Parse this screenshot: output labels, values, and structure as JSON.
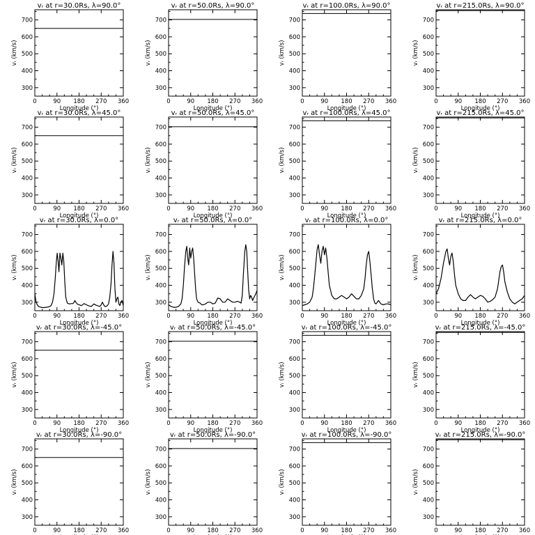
{
  "chart_data": {
    "type": "line",
    "layout": {
      "rows": 5,
      "cols": 4
    },
    "xlabel": "Longitude (°)",
    "ylabel": "vᵣ (km/s)",
    "xlim": [
      0,
      360
    ],
    "ylim": [
      250,
      760
    ],
    "xticks": [
      0,
      90,
      180,
      270,
      360
    ],
    "yticks": [
      300,
      400,
      500,
      600,
      700
    ],
    "line_color": "#000000",
    "radii": [
      "30.0",
      "50.0",
      "100.0",
      "215.0"
    ],
    "latitudes": [
      "90.0",
      "45.0",
      "0.0",
      "-45.0",
      "-90.0"
    ],
    "panels": [
      {
        "title": "vᵣ at r=30.0Rs, λ=90.0°",
        "type": "constant",
        "value": 650
      },
      {
        "title": "vᵣ at r=50.0Rs, λ=90.0°",
        "type": "constant",
        "value": 703
      },
      {
        "title": "vᵣ at r=100.0Rs, λ=90.0°",
        "type": "constant",
        "value": 738
      },
      {
        "title": "vᵣ at r=215.0Rs, λ=90.0°",
        "type": "constant",
        "value": 755
      },
      {
        "title": "vᵣ at r=30.0Rs, λ=45.0°",
        "type": "constant",
        "value": 650
      },
      {
        "title": "vᵣ at r=50.0Rs, λ=45.0°",
        "type": "constant",
        "value": 703
      },
      {
        "title": "vᵣ at r=100.0Rs, λ=45.0°",
        "type": "constant",
        "value": 738
      },
      {
        "title": "vᵣ at r=215.0Rs, λ=45.0°",
        "type": "constant",
        "value": 755
      },
      {
        "title": "vᵣ at r=30.0Rs, λ=0.0°",
        "type": "series",
        "x": [
          0,
          5,
          10,
          15,
          25,
          35,
          45,
          55,
          65,
          72,
          78,
          83,
          87,
          91,
          95,
          98,
          102,
          106,
          110,
          114,
          118,
          122,
          126,
          132,
          140,
          148,
          155,
          160,
          163,
          167,
          172,
          180,
          190,
          200,
          210,
          220,
          230,
          240,
          250,
          258,
          265,
          270,
          275,
          280,
          285,
          290,
          295,
          300,
          305,
          310,
          314,
          318,
          322,
          326,
          330,
          334,
          338,
          342,
          346,
          350,
          355,
          360
        ],
        "y": [
          350,
          300,
          285,
          275,
          270,
          268,
          270,
          272,
          278,
          300,
          350,
          440,
          530,
          590,
          540,
          480,
          590,
          560,
          520,
          590,
          540,
          420,
          330,
          295,
          290,
          292,
          292,
          300,
          310,
          300,
          290,
          285,
          280,
          292,
          285,
          278,
          275,
          290,
          282,
          278,
          275,
          285,
          300,
          285,
          275,
          275,
          280,
          290,
          330,
          410,
          520,
          600,
          530,
          380,
          300,
          320,
          330,
          290,
          280,
          300,
          310,
          280
        ]
      },
      {
        "title": "vᵣ at r=50.0Rs, λ=0.0°",
        "type": "series",
        "x": [
          0,
          5,
          10,
          20,
          30,
          40,
          50,
          55,
          60,
          65,
          70,
          74,
          78,
          82,
          86,
          90,
          94,
          98,
          102,
          106,
          110,
          114,
          120,
          128,
          135,
          142,
          150,
          160,
          170,
          180,
          190,
          200,
          210,
          220,
          230,
          240,
          250,
          260,
          270,
          280,
          290,
          295,
          300,
          305,
          310,
          314,
          318,
          322,
          326,
          330,
          334,
          338,
          342,
          348,
          355,
          360
        ],
        "y": [
          285,
          280,
          275,
          270,
          270,
          275,
          290,
          320,
          400,
          510,
          600,
          630,
          560,
          520,
          620,
          560,
          600,
          620,
          560,
          470,
          380,
          320,
          300,
          295,
          285,
          285,
          290,
          300,
          300,
          290,
          295,
          325,
          320,
          300,
          300,
          320,
          310,
          300,
          300,
          305,
          300,
          295,
          340,
          480,
          600,
          640,
          600,
          480,
          370,
          320,
          340,
          330,
          310,
          330,
          350,
          370
        ]
      },
      {
        "title": "vᵣ at r=100.0Rs, λ=0.0°",
        "type": "series",
        "x": [
          0,
          10,
          20,
          30,
          40,
          45,
          50,
          55,
          60,
          65,
          70,
          75,
          80,
          85,
          90,
          95,
          100,
          105,
          110,
          120,
          130,
          140,
          150,
          160,
          170,
          180,
          190,
          200,
          210,
          220,
          230,
          240,
          250,
          255,
          260,
          265,
          270,
          275,
          280,
          285,
          290,
          295,
          300,
          305,
          310,
          315,
          320,
          330,
          340,
          350,
          360
        ],
        "y": [
          280,
          285,
          290,
          300,
          330,
          380,
          450,
          530,
          610,
          640,
          580,
          530,
          600,
          630,
          580,
          620,
          560,
          480,
          400,
          340,
          320,
          320,
          330,
          340,
          330,
          320,
          330,
          350,
          335,
          320,
          320,
          340,
          380,
          440,
          520,
          580,
          600,
          540,
          460,
          380,
          320,
          295,
          290,
          300,
          310,
          300,
          290,
          285,
          290,
          290,
          285
        ]
      },
      {
        "title": "vᵣ at r=215.0Rs, λ=0.0°",
        "type": "series",
        "x": [
          0,
          10,
          20,
          30,
          40,
          45,
          50,
          55,
          60,
          65,
          70,
          75,
          80,
          90,
          100,
          110,
          120,
          130,
          140,
          150,
          160,
          170,
          180,
          190,
          200,
          210,
          220,
          230,
          240,
          250,
          255,
          260,
          265,
          270,
          275,
          280,
          290,
          300,
          310,
          320,
          330,
          340,
          350,
          360
        ],
        "y": [
          350,
          380,
          440,
          530,
          600,
          615,
          560,
          520,
          570,
          590,
          540,
          460,
          400,
          350,
          320,
          310,
          310,
          330,
          345,
          330,
          320,
          330,
          340,
          335,
          320,
          300,
          305,
          315,
          330,
          380,
          430,
          480,
          510,
          520,
          480,
          420,
          360,
          320,
          300,
          290,
          300,
          310,
          320,
          340
        ]
      },
      {
        "title": "vᵣ at r=30.0Rs, λ=-45.0°",
        "type": "constant",
        "value": 650
      },
      {
        "title": "vᵣ at r=50.0Rs, λ=-45.0°",
        "type": "constant",
        "value": 703
      },
      {
        "title": "vᵣ at r=100.0Rs, λ=-45.0°",
        "type": "constant",
        "value": 738
      },
      {
        "title": "vᵣ at r=215.0Rs, λ=-45.0°",
        "type": "constant",
        "value": 755
      },
      {
        "title": "vᵣ at r=30.0Rs, λ=-90.0°",
        "type": "constant",
        "value": 650
      },
      {
        "title": "vᵣ at r=50.0Rs, λ=-90.0°",
        "type": "constant",
        "value": 703
      },
      {
        "title": "vᵣ at r=100.0Rs, λ=-90.0°",
        "type": "constant",
        "value": 738
      },
      {
        "title": "vᵣ at r=215.0Rs, λ=-90.0°",
        "type": "constant",
        "value": 755
      }
    ]
  }
}
